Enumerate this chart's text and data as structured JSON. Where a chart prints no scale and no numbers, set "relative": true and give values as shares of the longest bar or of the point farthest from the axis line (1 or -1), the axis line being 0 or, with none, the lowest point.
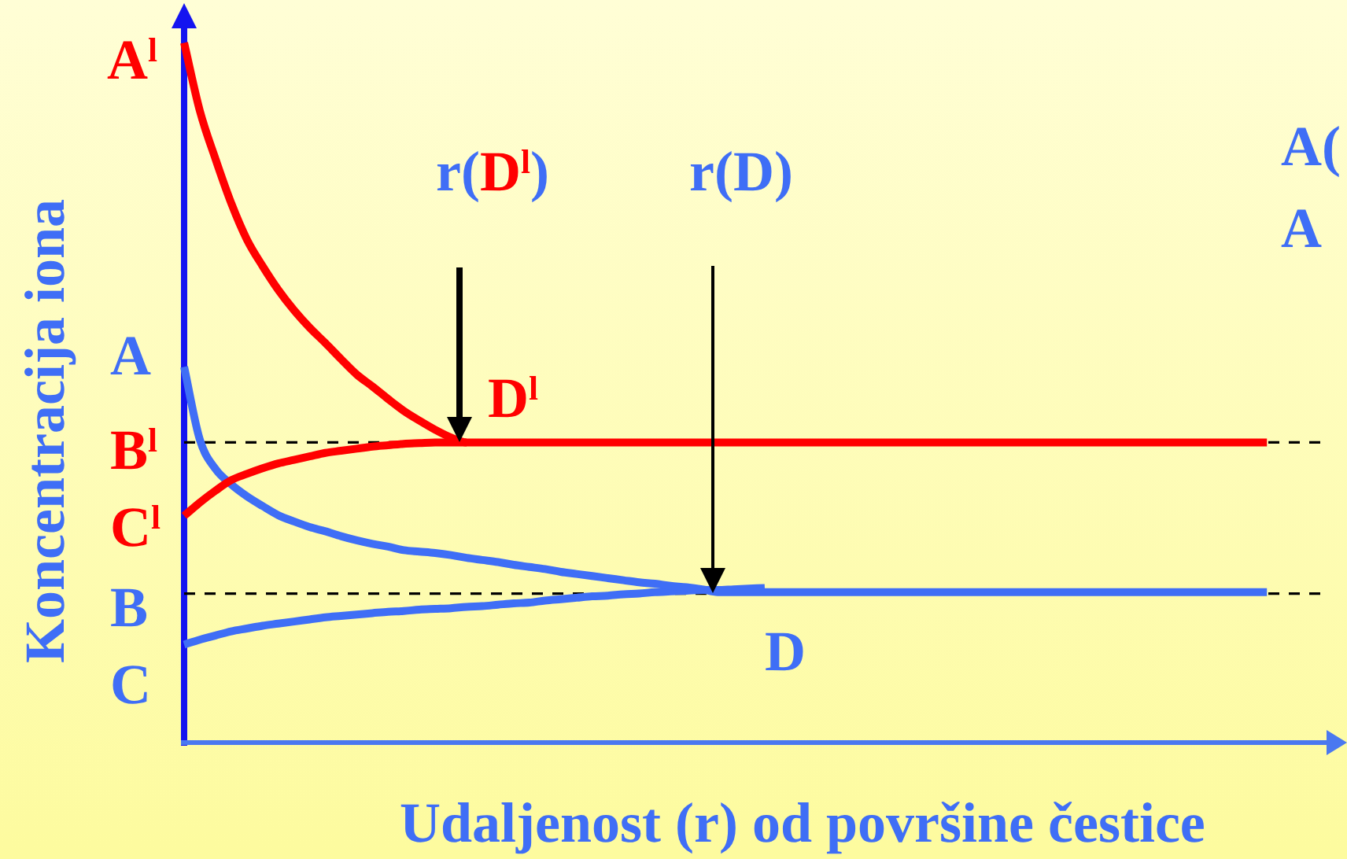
{
  "chart_data": {
    "type": "line",
    "relative": true,
    "xlabel": "Udaljenost (r) od površine čestice",
    "ylabel": "Koncentracija iona",
    "categories": [
      null,
      null,
      null,
      null,
      null,
      null,
      null,
      null,
      null,
      null,
      null,
      null,
      null,
      null,
      null,
      null,
      null,
      null,
      null,
      null,
      null,
      null,
      null,
      null,
      null,
      null,
      null,
      null,
      null,
      null,
      null,
      null,
      null,
      null,
      null,
      null,
      null,
      null,
      null,
      null,
      null,
      null,
      null,
      null,
      null,
      null,
      null,
      null,
      null,
      null,
      null,
      null,
      null,
      null,
      null,
      null,
      null,
      null,
      null,
      null,
      null,
      null,
      null,
      null,
      null,
      null,
      null,
      null,
      null,
      null,
      null,
      null,
      null,
      null
    ],
    "series": [
      {
        "color": "#ff0000",
        "values": [
          1,
          0.903,
          0.834,
          0.771,
          0.719,
          0.681,
          0.647,
          0.618,
          0.593,
          0.571,
          0.548,
          0.526,
          0.509,
          0.491,
          0.474,
          0.46,
          0.447,
          0.436,
          0.429,
          0.429,
          0.429,
          0.429,
          0.429,
          0.429,
          0.429,
          0.429,
          0.429,
          0.429,
          0.429,
          0.429,
          0.429,
          0.429,
          0.429,
          0.429,
          0.429,
          0.429,
          0.429,
          0.429,
          0.429,
          0.429,
          0.429,
          0.429,
          0.429,
          0.429,
          0.429,
          0.429,
          0.429,
          0.429,
          0.429,
          0.429,
          0.429,
          0.429,
          0.429,
          0.429,
          0.429,
          0.429,
          0.429,
          0.429,
          0.429,
          0.429,
          0.429,
          0.429,
          0.429,
          0.429,
          0.429,
          0.429,
          0.429,
          0.429,
          0.429,
          0.429,
          null,
          null,
          null,
          null
        ]
      },
      {
        "color": "#ff0000",
        "values": [
          0.324,
          0.343,
          0.36,
          0.375,
          0.384,
          0.392,
          0.399,
          0.404,
          0.409,
          0.414,
          0.417,
          0.42,
          0.423,
          0.425,
          0.427,
          0.428,
          0.429,
          0.429,
          0.429,
          null,
          null,
          null,
          null,
          null,
          null,
          null,
          null,
          null,
          null,
          null,
          null,
          null,
          null,
          null,
          null,
          null,
          null,
          null,
          null,
          null,
          null,
          null,
          null,
          null,
          null,
          null,
          null,
          null,
          null,
          null,
          null,
          null,
          null,
          null,
          null,
          null,
          null,
          null,
          null,
          null,
          null,
          null,
          null,
          null,
          null,
          null,
          null,
          null,
          null,
          null,
          null,
          null,
          null,
          null
        ]
      },
      {
        "color": "#3f6ef6",
        "values": [
          0.537,
          0.433,
          0.391,
          0.369,
          0.352,
          0.338,
          0.325,
          0.316,
          0.308,
          0.302,
          0.295,
          0.289,
          0.284,
          0.28,
          0.275,
          0.273,
          0.271,
          0.268,
          0.264,
          0.261,
          0.258,
          0.254,
          0.251,
          0.248,
          0.244,
          0.241,
          0.238,
          0.235,
          0.232,
          0.229,
          0.227,
          0.224,
          0.222,
          0.219,
          0.215,
          0.215,
          0.215,
          0.215,
          0.215,
          0.215,
          0.215,
          0.215,
          0.215,
          0.215,
          0.215,
          0.215,
          0.215,
          0.215,
          0.215,
          0.215,
          0.215,
          0.215,
          0.215,
          0.215,
          0.215,
          0.215,
          0.215,
          0.215,
          0.215,
          0.215,
          0.215,
          0.215,
          0.215,
          0.215,
          0.215,
          0.215,
          0.215,
          0.215,
          0.215,
          0.215,
          null,
          null,
          null,
          null
        ]
      },
      {
        "color": "#3f6ef6",
        "values": [
          0.14,
          0.147,
          0.153,
          0.159,
          0.163,
          0.167,
          0.17,
          0.173,
          0.176,
          0.179,
          0.181,
          0.183,
          0.185,
          0.187,
          0.188,
          0.19,
          0.191,
          0.192,
          0.194,
          0.195,
          0.197,
          0.199,
          0.2,
          0.203,
          0.205,
          0.207,
          0.209,
          0.21,
          0.212,
          0.213,
          0.215,
          0.216,
          0.217,
          0.218,
          0.218,
          0.219,
          0.22,
          0.221,
          null,
          null,
          null,
          null,
          null,
          null,
          null,
          null,
          null,
          null,
          null,
          null,
          null,
          null,
          null,
          null,
          null,
          null,
          null,
          null,
          null,
          null,
          null,
          null,
          null,
          null,
          null,
          null,
          null,
          null,
          null,
          null,
          null,
          null,
          null,
          null
        ]
      }
    ],
    "ref_lines": [
      {
        "axis": "y",
        "value": 0.429,
        "color": "#000000",
        "line_style": "dashed"
      },
      {
        "axis": "y",
        "value": 0.213,
        "color": "#000000",
        "line_style": "dashed"
      }
    ],
    "annotations": [
      "A$^{l}$",
      "r(D$^{l}$)",
      "r(D)",
      "A(",
      "A",
      "A",
      "D$^{l}$",
      "B$^{l}$",
      "C$^{l}$",
      "B",
      "D",
      "C"
    ]
  }
}
